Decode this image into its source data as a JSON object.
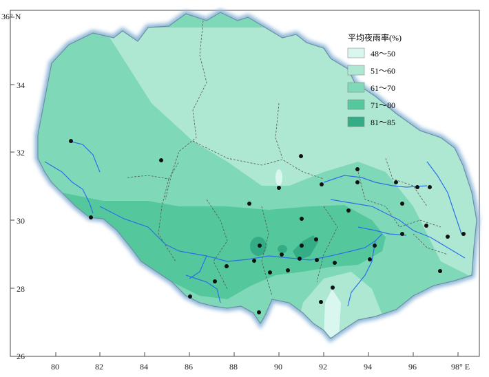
{
  "map": {
    "legend": {
      "title": "平均夜雨率(%)",
      "items": [
        {
          "label": "48～50",
          "color": "#d9f7ef"
        },
        {
          "label": "51～60",
          "color": "#aee8d3"
        },
        {
          "label": "61～70",
          "color": "#7fd9b8"
        },
        {
          "label": "71～80",
          "color": "#55c79d"
        },
        {
          "label": "81～85",
          "color": "#34ad86"
        }
      ]
    },
    "axes": {
      "x_ticks": [
        "80",
        "82",
        "84",
        "86",
        "88",
        "90",
        "92",
        "94",
        "96",
        "98° E"
      ],
      "y_ticks": [
        "36° N",
        "34",
        "32",
        "30",
        "28",
        "26"
      ]
    },
    "colors": {
      "frame": "#4a4a4a",
      "border_glow": "#8fb8d8",
      "river": "#2a6fe8",
      "station": "#111111",
      "boundary": "#555555"
    }
  }
}
